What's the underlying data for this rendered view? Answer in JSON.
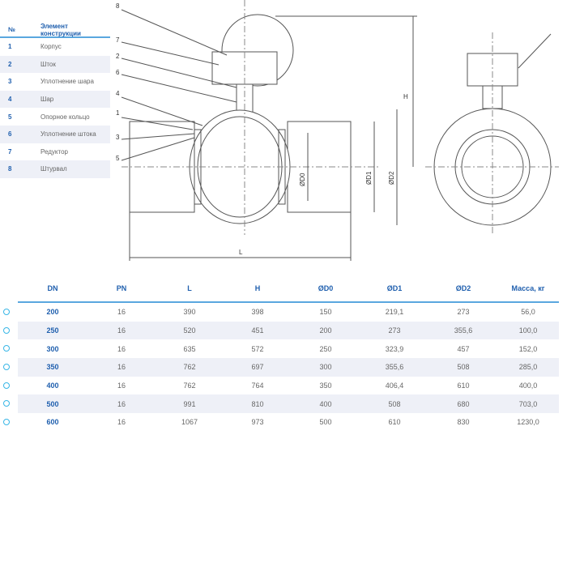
{
  "parts_table": {
    "headers": [
      "№",
      "Элемент конструкции"
    ],
    "rows": [
      {
        "n": "1",
        "name": "Корпус"
      },
      {
        "n": "2",
        "name": "Шток"
      },
      {
        "n": "3",
        "name": "Уплотнение шара"
      },
      {
        "n": "4",
        "name": "Шар"
      },
      {
        "n": "5",
        "name": "Опорное кольцо"
      },
      {
        "n": "6",
        "name": "Уплотнение штока"
      },
      {
        "n": "7",
        "name": "Редуктор"
      },
      {
        "n": "8",
        "name": "Штурвал"
      }
    ]
  },
  "drawing": {
    "callouts": [
      "8",
      "7",
      "2",
      "6",
      "4",
      "1",
      "3",
      "5"
    ],
    "dim_h": "H",
    "dim_l": "L",
    "dim_d0": "ØD0",
    "dim_d1": "ØD1",
    "dim_d2": "ØD2"
  },
  "spec_table": {
    "headers": [
      "DN",
      "PN",
      "L",
      "H",
      "ØD0",
      "ØD1",
      "ØD2",
      "Масса, кг"
    ],
    "rows": [
      [
        "200",
        "16",
        "390",
        "398",
        "150",
        "219,1",
        "273",
        "56,0"
      ],
      [
        "250",
        "16",
        "520",
        "451",
        "200",
        "273",
        "355,6",
        "100,0"
      ],
      [
        "300",
        "16",
        "635",
        "572",
        "250",
        "323,9",
        "457",
        "152,0"
      ],
      [
        "350",
        "16",
        "762",
        "697",
        "300",
        "355,6",
        "508",
        "285,0"
      ],
      [
        "400",
        "16",
        "762",
        "764",
        "350",
        "406,4",
        "610",
        "400,0"
      ],
      [
        "500",
        "16",
        "991",
        "810",
        "400",
        "508",
        "680",
        "703,0"
      ],
      [
        "600",
        "16",
        "1067",
        "973",
        "500",
        "610",
        "830",
        "1230,0"
      ]
    ]
  },
  "colors": {
    "accent": "#1f5fae",
    "rule": "#5aa7df",
    "marker": "#38b6e6",
    "stripe": "#eef0f7"
  }
}
